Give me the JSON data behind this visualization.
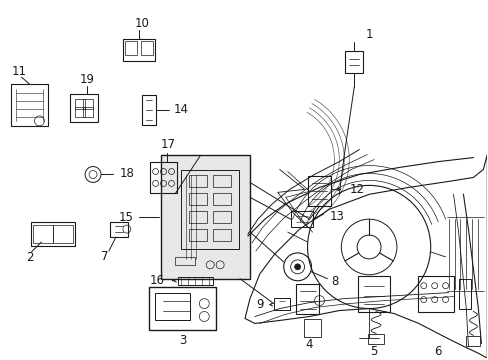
{
  "background_color": "#ffffff",
  "fig_width": 4.89,
  "fig_height": 3.6,
  "dpi": 100,
  "line_color": "#1a1a1a",
  "label_fontsize": 8.5,
  "shade_color": "#e8e8e8",
  "lw": 0.7
}
